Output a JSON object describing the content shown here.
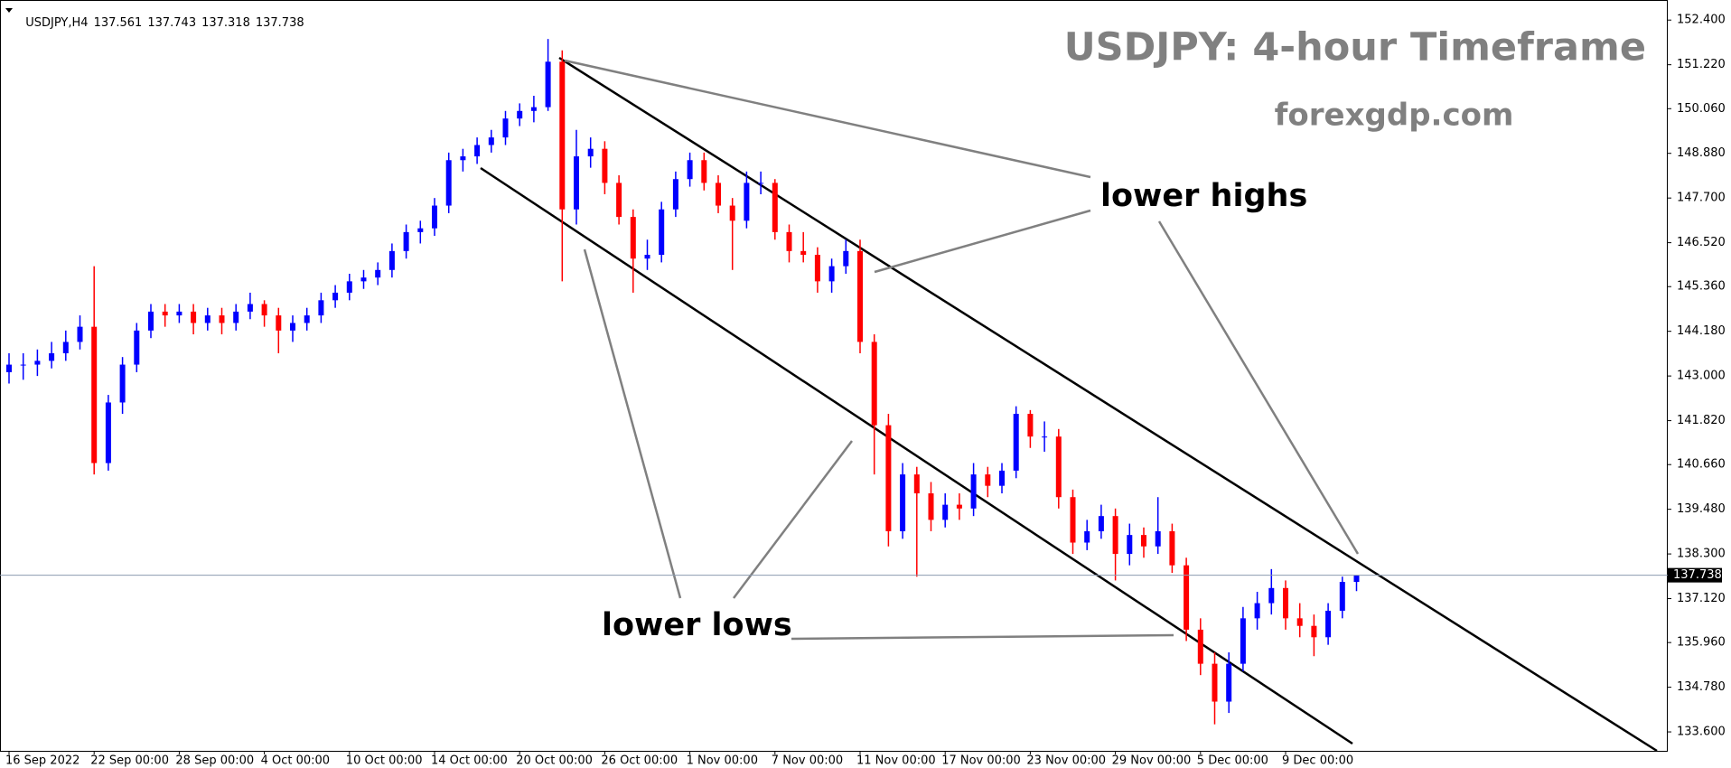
{
  "chart_data": {
    "type": "candlestick",
    "symbol": "USDJPY,H4",
    "title": "USDJPY: 4-hour Timeframe",
    "subtitle": "forexgdp.com",
    "annotations": [
      "lower highs",
      "lower lows"
    ],
    "up_color": "#0000ff",
    "down_color": "#ff0000",
    "ylim": [
      133.1,
      152.93
    ],
    "yticks": [
      {
        "value": 152.4,
        "label": "152.400"
      },
      {
        "value": 151.22,
        "label": "151.220"
      },
      {
        "value": 150.06,
        "label": "150.060"
      },
      {
        "value": 148.88,
        "label": "148.880"
      },
      {
        "value": 147.7,
        "label": "147.700"
      },
      {
        "value": 146.52,
        "label": "146.520"
      },
      {
        "value": 145.36,
        "label": "145.360"
      },
      {
        "value": 144.18,
        "label": "144.180"
      },
      {
        "value": 143.0,
        "label": "143.000"
      },
      {
        "value": 141.82,
        "label": "141.820"
      },
      {
        "value": 140.66,
        "label": "140.660"
      },
      {
        "value": 139.48,
        "label": "139.480"
      },
      {
        "value": 138.3,
        "label": "138.300"
      },
      {
        "value": 137.12,
        "label": "137.120"
      },
      {
        "value": 135.96,
        "label": "135.960"
      },
      {
        "value": 134.78,
        "label": "134.780"
      },
      {
        "value": 133.6,
        "label": "133.600"
      }
    ],
    "categories": [
      "16 Sep 2022",
      null,
      null,
      null,
      null,
      null,
      "22 Sep 00:00",
      null,
      null,
      null,
      null,
      null,
      "28 Sep 00:00",
      null,
      null,
      null,
      null,
      null,
      "4 Oct 00:00",
      null,
      null,
      null,
      null,
      null,
      "10 Oct 00:00",
      null,
      null,
      null,
      null,
      null,
      "14 Oct 00:00",
      null,
      null,
      null,
      null,
      null,
      "20 Oct 00:00",
      null,
      null,
      null,
      null,
      null,
      "26 Oct 00:00",
      null,
      null,
      null,
      null,
      null,
      "1 Nov 00:00",
      null,
      null,
      null,
      null,
      null,
      "7 Nov 00:00",
      null,
      null,
      null,
      null,
      null,
      "11 Nov 00:00",
      null,
      null,
      null,
      null,
      null,
      "17 Nov 00:00",
      null,
      null,
      null,
      null,
      null,
      "23 Nov 00:00",
      null,
      null,
      null,
      null,
      null,
      "29 Nov 00:00",
      null,
      null,
      null,
      null,
      null,
      "5 Dec 00:00",
      null,
      null,
      null,
      null,
      null,
      "9 Dec 00:00",
      null,
      null,
      null,
      null,
      null
    ],
    "ohlc": [
      [
        143.1,
        143.6,
        142.8,
        143.3
      ],
      [
        143.3,
        143.6,
        142.9,
        143.3
      ],
      [
        143.3,
        143.7,
        143.0,
        143.4
      ],
      [
        143.4,
        143.9,
        143.2,
        143.6
      ],
      [
        143.6,
        144.2,
        143.4,
        143.9
      ],
      [
        143.9,
        144.6,
        143.7,
        144.3
      ],
      [
        144.3,
        145.9,
        140.4,
        140.7
      ],
      [
        140.7,
        142.5,
        140.5,
        142.3
      ],
      [
        142.3,
        143.5,
        142.0,
        143.3
      ],
      [
        143.3,
        144.4,
        143.1,
        144.2
      ],
      [
        144.2,
        144.9,
        144.0,
        144.7
      ],
      [
        144.7,
        144.9,
        144.3,
        144.6
      ],
      [
        144.6,
        144.9,
        144.4,
        144.7
      ],
      [
        144.7,
        144.9,
        144.1,
        144.4
      ],
      [
        144.4,
        144.8,
        144.2,
        144.6
      ],
      [
        144.6,
        144.8,
        144.1,
        144.4
      ],
      [
        144.4,
        144.9,
        144.2,
        144.7
      ],
      [
        144.7,
        145.2,
        144.5,
        144.9
      ],
      [
        144.9,
        145.0,
        144.3,
        144.6
      ],
      [
        144.6,
        144.8,
        143.6,
        144.2
      ],
      [
        144.2,
        144.6,
        143.9,
        144.4
      ],
      [
        144.4,
        144.8,
        144.2,
        144.6
      ],
      [
        144.6,
        145.2,
        144.4,
        145.0
      ],
      [
        145.0,
        145.4,
        144.8,
        145.2
      ],
      [
        145.2,
        145.7,
        145.0,
        145.5
      ],
      [
        145.5,
        145.8,
        145.3,
        145.6
      ],
      [
        145.6,
        146.0,
        145.4,
        145.8
      ],
      [
        145.8,
        146.5,
        145.6,
        146.3
      ],
      [
        146.3,
        147.0,
        146.1,
        146.8
      ],
      [
        146.8,
        147.1,
        146.5,
        146.9
      ],
      [
        146.9,
        147.7,
        146.7,
        147.5
      ],
      [
        147.5,
        148.9,
        147.3,
        148.7
      ],
      [
        148.7,
        149.0,
        148.4,
        148.8
      ],
      [
        148.8,
        149.3,
        148.6,
        149.1
      ],
      [
        149.1,
        149.5,
        148.9,
        149.3
      ],
      [
        149.3,
        150.0,
        149.1,
        149.8
      ],
      [
        149.8,
        150.2,
        149.6,
        150.0
      ],
      [
        150.0,
        150.4,
        149.7,
        150.1
      ],
      [
        150.1,
        151.9,
        150.0,
        151.3
      ],
      [
        151.3,
        151.6,
        145.5,
        147.4
      ],
      [
        147.4,
        149.5,
        147.0,
        148.8
      ],
      [
        148.8,
        149.3,
        148.5,
        149.0
      ],
      [
        149.0,
        149.2,
        147.8,
        148.1
      ],
      [
        148.1,
        148.3,
        147.0,
        147.2
      ],
      [
        147.2,
        147.4,
        145.2,
        146.1
      ],
      [
        146.1,
        146.6,
        145.8,
        146.2
      ],
      [
        146.2,
        147.6,
        146.0,
        147.4
      ],
      [
        147.4,
        148.4,
        147.2,
        148.2
      ],
      [
        148.2,
        148.9,
        148.0,
        148.7
      ],
      [
        148.7,
        148.9,
        147.9,
        148.1
      ],
      [
        148.1,
        148.3,
        147.3,
        147.5
      ],
      [
        147.5,
        147.7,
        145.8,
        147.1
      ],
      [
        147.1,
        148.4,
        146.9,
        148.1
      ],
      [
        148.1,
        148.4,
        147.8,
        148.1
      ],
      [
        148.1,
        148.2,
        146.6,
        146.8
      ],
      [
        146.8,
        147.0,
        146.0,
        146.3
      ],
      [
        146.3,
        146.8,
        146.0,
        146.2
      ],
      [
        146.2,
        146.4,
        145.2,
        145.5
      ],
      [
        145.5,
        146.1,
        145.2,
        145.9
      ],
      [
        145.9,
        146.6,
        145.7,
        146.3
      ],
      [
        146.3,
        146.6,
        143.6,
        143.9
      ],
      [
        143.9,
        144.1,
        140.4,
        141.7
      ],
      [
        141.7,
        142.0,
        138.5,
        138.9
      ],
      [
        138.9,
        140.7,
        138.7,
        140.4
      ],
      [
        140.4,
        140.6,
        137.7,
        139.9
      ],
      [
        139.9,
        140.2,
        138.9,
        139.2
      ],
      [
        139.2,
        139.9,
        139.0,
        139.6
      ],
      [
        139.6,
        139.9,
        139.2,
        139.5
      ],
      [
        139.5,
        140.7,
        139.3,
        140.4
      ],
      [
        140.4,
        140.6,
        139.8,
        140.1
      ],
      [
        140.1,
        140.7,
        139.9,
        140.5
      ],
      [
        140.5,
        142.2,
        140.3,
        142.0
      ],
      [
        142.0,
        142.1,
        141.1,
        141.4
      ],
      [
        141.4,
        141.8,
        141.0,
        141.4
      ],
      [
        141.4,
        141.6,
        139.5,
        139.8
      ],
      [
        139.8,
        140.0,
        138.3,
        138.6
      ],
      [
        138.6,
        139.2,
        138.4,
        138.9
      ],
      [
        138.9,
        139.6,
        138.7,
        139.3
      ],
      [
        139.3,
        139.5,
        137.6,
        138.3
      ],
      [
        138.3,
        139.1,
        138.0,
        138.8
      ],
      [
        138.8,
        139.0,
        138.2,
        138.5
      ],
      [
        138.5,
        139.8,
        138.3,
        138.9
      ],
      [
        138.9,
        139.1,
        137.8,
        138.0
      ],
      [
        138.0,
        138.2,
        136.0,
        136.3
      ],
      [
        136.3,
        136.6,
        135.1,
        135.4
      ],
      [
        135.4,
        135.7,
        133.8,
        134.4
      ],
      [
        134.4,
        135.7,
        134.1,
        135.4
      ],
      [
        135.4,
        136.9,
        135.2,
        136.6
      ],
      [
        136.6,
        137.3,
        136.3,
        137.0
      ],
      [
        137.0,
        137.9,
        136.7,
        137.4
      ],
      [
        137.4,
        137.6,
        136.3,
        136.6
      ],
      [
        136.6,
        137.0,
        136.1,
        136.4
      ],
      [
        136.4,
        136.7,
        135.6,
        136.1
      ],
      [
        136.1,
        137.0,
        135.9,
        136.8
      ],
      [
        136.8,
        137.7,
        136.6,
        137.561
      ],
      [
        137.561,
        137.743,
        137.318,
        137.738
      ]
    ]
  }
}
